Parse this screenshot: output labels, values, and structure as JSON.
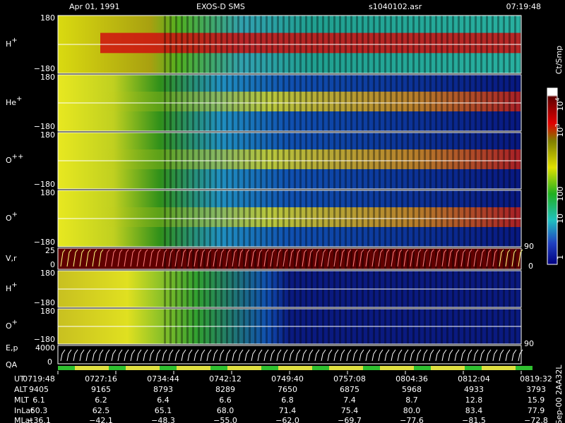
{
  "header": {
    "date": "Apr 01, 1991",
    "instrument": "EXOS-D SMS",
    "file": "s1040102.asr",
    "time": "07:19:48"
  },
  "panels": [
    {
      "label": "H",
      "sup": "+",
      "top": "180",
      "bottom": "−180"
    },
    {
      "label": "He",
      "sup": "+",
      "top": "180",
      "bottom": "−180"
    },
    {
      "label": "O",
      "sup": "++",
      "top": "180",
      "bottom": "−180"
    },
    {
      "label": "O",
      "sup": "+",
      "top": "180",
      "bottom": "−180"
    },
    {
      "label": "V,r",
      "top": "25",
      "bottom": "0",
      "right_top": "90",
      "right_bottom": "0"
    },
    {
      "label": "H",
      "sup": "+",
      "top": "180",
      "bottom": "−180"
    },
    {
      "label": "O",
      "sup": "+",
      "top": "180",
      "bottom": "−180"
    },
    {
      "label": "E,p",
      "top": "4000",
      "right_top": "90"
    }
  ],
  "qa": {
    "label": "QA",
    "tick": "0"
  },
  "colorbar": {
    "unit": "Ct/Smp",
    "labels": [
      {
        "base": "10",
        "exp": "4"
      },
      {
        "base": "10",
        "exp": "3"
      },
      "100",
      "10",
      "1"
    ]
  },
  "footer": "Sep-00 2AA32L",
  "table": {
    "rows": [
      [
        "UT",
        "0719:48",
        "0727:16",
        "0734:44",
        "0742:12",
        "0749:40",
        "0757:08",
        "0804:36",
        "0812:04",
        "0819:32"
      ],
      [
        "ALT",
        "9405",
        "9165",
        "8793",
        "8289",
        "7650",
        "6875",
        "5968",
        "4933",
        "3793"
      ],
      [
        "MLT",
        "6.1",
        "6.2",
        "6.4",
        "6.6",
        "6.8",
        "7.4",
        "8.7",
        "12.8",
        "15.9"
      ],
      [
        "InLat",
        "60.3",
        "62.5",
        "65.1",
        "68.0",
        "71.4",
        "75.4",
        "80.0",
        "83.4",
        "77.9"
      ],
      [
        "MLat",
        "−36.1",
        "−42.1",
        "−48.3",
        "−55.0",
        "−62.0",
        "−69.7",
        "−77.6",
        "−81.5",
        "−72.8"
      ]
    ]
  }
}
